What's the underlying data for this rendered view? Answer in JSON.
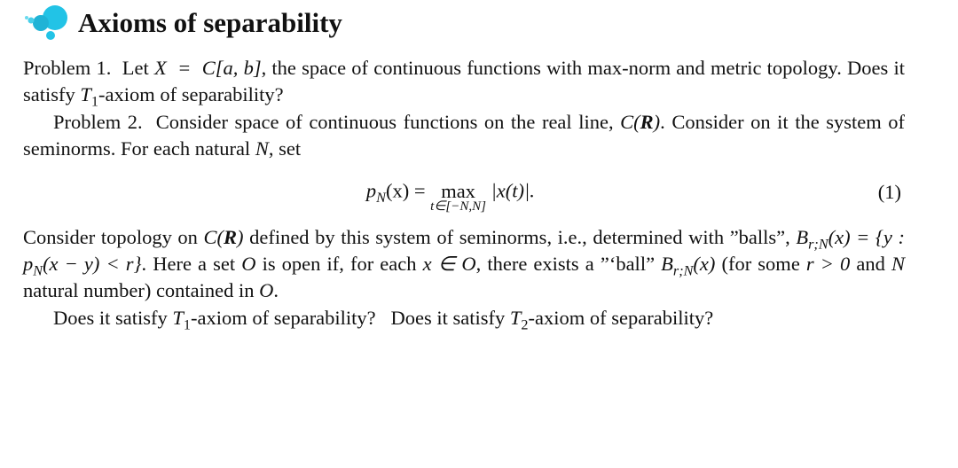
{
  "icon": {
    "colors": {
      "big": "#22c3e6",
      "mid": "#1fb3d6",
      "small1": "#47cfe9",
      "small2": "#6ad9ee"
    }
  },
  "title": "Axioms of separability",
  "p1a": "Problem 1.  Let ",
  "p1b": ", the space of continuous functions with max-norm and metric topology. Does it satisfy ",
  "p1c": "-axiom of separability?",
  "expr_X_eq_Cab": "X  =  C[a, b]",
  "T1": "T",
  "one": "1",
  "p2a": "Problem 2.  Consider space of continuous functions on the real line, ",
  "C_of_R": "C(R)",
  "p2b": ". Consider on it the system of seminorms. For each natural ",
  "N": "N",
  "p2c": ", set",
  "eq": {
    "lhs_p": "p",
    "lhs_N": "N",
    "lhs_of_x": "(x) = ",
    "max": "max",
    "range": "t∈[−N,N]",
    "body": " |x(t)|.",
    "number": "(1)"
  },
  "p3a": "Consider topology on ",
  "p3b": " defined by this system of seminorms, i.e., determined with ”balls”, ",
  "ball_def": "B",
  "ball_sub": "r;N",
  "ball_def2": "(x) = {y : p",
  "ball_def3": "(x − y) < r}",
  "p3c": ". Here a set ",
  "O": "O",
  "p3d": " is open if, for each ",
  "x_in_O": "x ∈ O",
  "p3e": ", there exists a ”‘ball” ",
  "ball2": "(x)",
  "p3f": " (for some ",
  "r_gt_0": "r > 0",
  "p3g": " and ",
  "p3h": " natural number) contained in ",
  "p3i": ".",
  "p4a": "Does it satisfy ",
  "two": "2",
  "p4b": "-axiom of separability?   Does it satisfy ",
  "p4c": "-axiom of separability?"
}
